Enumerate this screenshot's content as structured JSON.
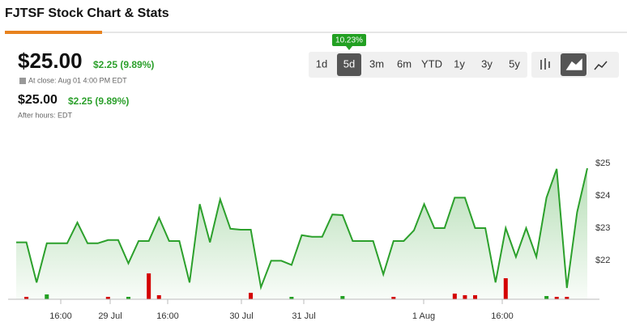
{
  "header": {
    "title": "FJTSF Stock Chart & Stats"
  },
  "quote": {
    "price": "$25.00",
    "change": "$2.25 (9.89%)",
    "close_note": "At close: Aug 01 4:00 PM EDT",
    "after_price": "$25.00",
    "after_change": "$2.25 (9.89%)",
    "after_note": "After hours: EDT"
  },
  "ranges": {
    "tooltip": "10.23%",
    "buttons": [
      "1d",
      "5d",
      "3m",
      "6m",
      "YTD",
      "1y",
      "3y",
      "5y"
    ],
    "active": 1
  },
  "chart_data": {
    "type": "area",
    "color": "#2ca02c",
    "x_labels": [
      "16:00",
      "29 Jul",
      "16:00",
      "30 Jul",
      "31 Jul",
      "1 Aug",
      "16:00"
    ],
    "values": [
      22.56,
      22.56,
      21.32,
      22.53,
      22.53,
      22.53,
      23.17,
      22.53,
      22.53,
      22.63,
      22.63,
      21.91,
      22.6,
      22.6,
      23.32,
      22.6,
      22.6,
      21.32,
      23.74,
      22.56,
      23.89,
      22.98,
      22.95,
      22.95,
      21.17,
      21.99,
      21.99,
      21.86,
      22.78,
      22.73,
      22.73,
      23.42,
      23.4,
      22.6,
      22.6,
      22.6,
      21.57,
      22.6,
      22.6,
      22.93,
      23.74,
      23.0,
      23.0,
      23.94,
      23.94,
      23.0,
      23.0,
      21.32,
      23.0,
      22.11,
      23.0,
      22.11,
      23.94,
      24.83,
      21.15,
      23.49,
      24.85
    ],
    "ylim": [
      20.8,
      26.3
    ],
    "yticks": [
      {
        "value": 22,
        "label": "$22"
      },
      {
        "value": 23,
        "label": "$23"
      },
      {
        "value": 24,
        "label": "$24"
      },
      {
        "value": 25,
        "label": "$25"
      }
    ],
    "volume": [
      {
        "color": "#d40000",
        "values": [
          null,
          3,
          null,
          null,
          null,
          null,
          null,
          null,
          null,
          3,
          null,
          null,
          null,
          32,
          5,
          null,
          null,
          null,
          null,
          null,
          null,
          null,
          null,
          8,
          null,
          null,
          null,
          null,
          null,
          null,
          null,
          null,
          null,
          null,
          null,
          null,
          null,
          3,
          null,
          null,
          null,
          null,
          null,
          7,
          5,
          5,
          null,
          null,
          26,
          null,
          null,
          null,
          null,
          3,
          3,
          null,
          null
        ]
      },
      {
        "color": "#22a022",
        "values": [
          null,
          null,
          null,
          6,
          null,
          null,
          null,
          null,
          null,
          null,
          null,
          3,
          null,
          null,
          null,
          null,
          null,
          null,
          null,
          null,
          null,
          null,
          null,
          null,
          null,
          null,
          null,
          3,
          null,
          null,
          null,
          null,
          4,
          null,
          null,
          null,
          null,
          null,
          null,
          null,
          null,
          null,
          null,
          null,
          null,
          null,
          null,
          null,
          null,
          null,
          null,
          null,
          4,
          null,
          null,
          null,
          null
        ]
      }
    ]
  }
}
